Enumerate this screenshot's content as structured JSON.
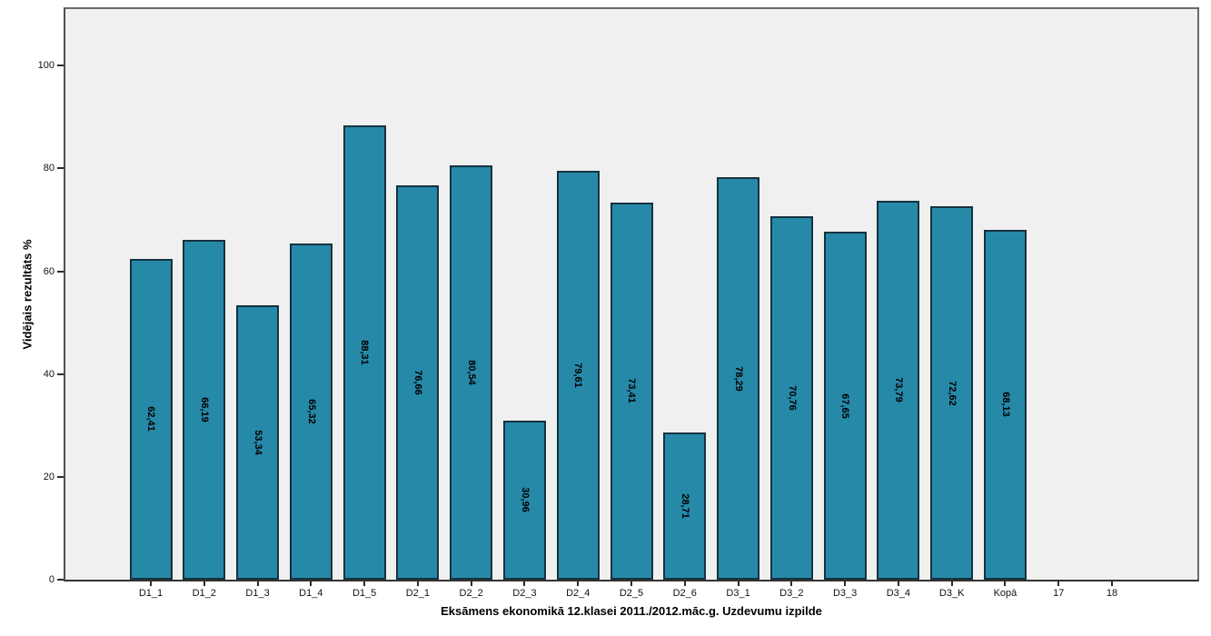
{
  "chart_data": {
    "type": "bar",
    "title": "",
    "xlabel": "Eksāmens ekonomikā 12.klasei 2011./2012.māc.g. Uzdevumu izpilde",
    "ylabel": "Vidējais rezultāts %",
    "categories": [
      "D1_1",
      "D1_2",
      "D1_3",
      "D1_4",
      "D1_5",
      "D2_1",
      "D2_2",
      "D2_3",
      "D2_4",
      "D2_5",
      "D2_6",
      "D3_1",
      "D3_2",
      "D3_3",
      "D3_4",
      "D3_K",
      "Kopā",
      "17",
      "18"
    ],
    "values": [
      62.41,
      66.19,
      53.34,
      65.32,
      88.31,
      76.66,
      80.54,
      30.96,
      79.61,
      73.41,
      28.71,
      78.29,
      70.76,
      67.65,
      73.79,
      72.62,
      68.13,
      null,
      null
    ],
    "value_labels": [
      "62,41",
      "66,19",
      "53,34",
      "65,32",
      "88,31",
      "76,66",
      "80,54",
      "30,96",
      "79,61",
      "73,41",
      "28,71",
      "78,29",
      "70,76",
      "67,65",
      "73,79",
      "72,62",
      "68,13",
      "",
      ""
    ],
    "y_ticks": [
      0,
      20,
      40,
      60,
      80,
      100
    ],
    "ylim": [
      0,
      111
    ],
    "grid": false,
    "legend_position": "none",
    "bar_color": "#2789a8",
    "bar_border_color": "#16323f",
    "plot_background": "#f0f0f0",
    "frame_border_color": "#6a6a6a",
    "tick_color": "#2b2b2b"
  }
}
